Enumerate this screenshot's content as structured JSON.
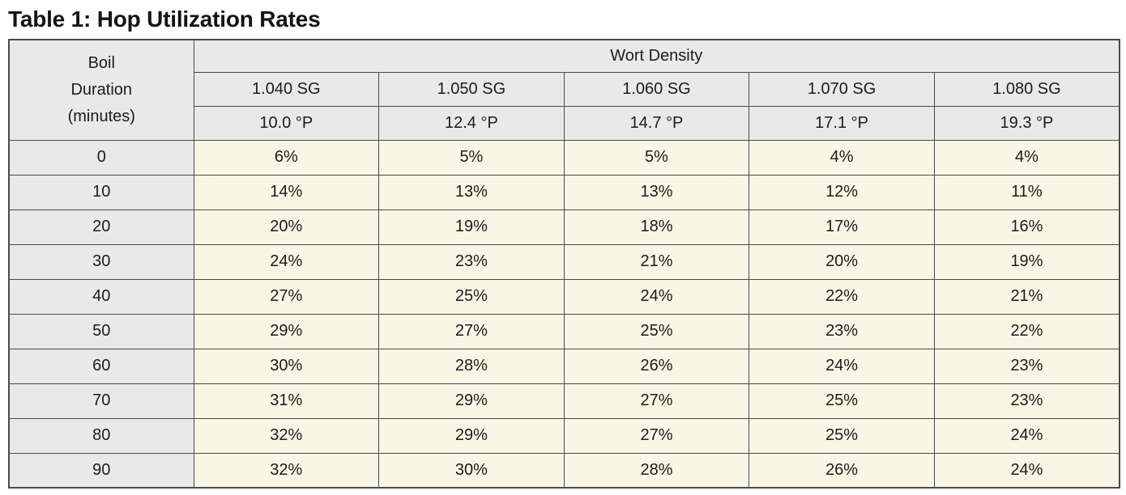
{
  "page_title": "Table 1: Hop Utilization Rates",
  "table": {
    "corner_header": {
      "lines": [
        "Boil",
        "Duration",
        "(minutes)"
      ]
    },
    "group_header": "Wort Density",
    "sg_headers": [
      "1.040 SG",
      "1.050 SG",
      "1.060 SG",
      "1.070 SG",
      "1.080 SG"
    ],
    "plato_headers": [
      "10.0 °P",
      "12.4 °P",
      "14.7 °P",
      "17.1 °P",
      "19.3 °P"
    ],
    "rows": [
      {
        "duration": "0",
        "values": [
          "6%",
          "5%",
          "5%",
          "4%",
          "4%"
        ]
      },
      {
        "duration": "10",
        "values": [
          "14%",
          "13%",
          "13%",
          "12%",
          "11%"
        ]
      },
      {
        "duration": "20",
        "values": [
          "20%",
          "19%",
          "18%",
          "17%",
          "16%"
        ]
      },
      {
        "duration": "30",
        "values": [
          "24%",
          "23%",
          "21%",
          "20%",
          "19%"
        ]
      },
      {
        "duration": "40",
        "values": [
          "27%",
          "25%",
          "24%",
          "22%",
          "21%"
        ]
      },
      {
        "duration": "50",
        "values": [
          "29%",
          "27%",
          "25%",
          "23%",
          "22%"
        ]
      },
      {
        "duration": "60",
        "values": [
          "30%",
          "28%",
          "26%",
          "24%",
          "23%"
        ]
      },
      {
        "duration": "70",
        "values": [
          "31%",
          "29%",
          "27%",
          "25%",
          "23%"
        ]
      },
      {
        "duration": "80",
        "values": [
          "32%",
          "29%",
          "27%",
          "25%",
          "24%"
        ]
      },
      {
        "duration": "90",
        "values": [
          "32%",
          "30%",
          "28%",
          "26%",
          "24%"
        ]
      }
    ]
  },
  "colors": {
    "header_bg": "#e9e9e9",
    "data_bg": "#faf6e6",
    "border": "#4a4a4c",
    "text": "#1c1c1c"
  }
}
